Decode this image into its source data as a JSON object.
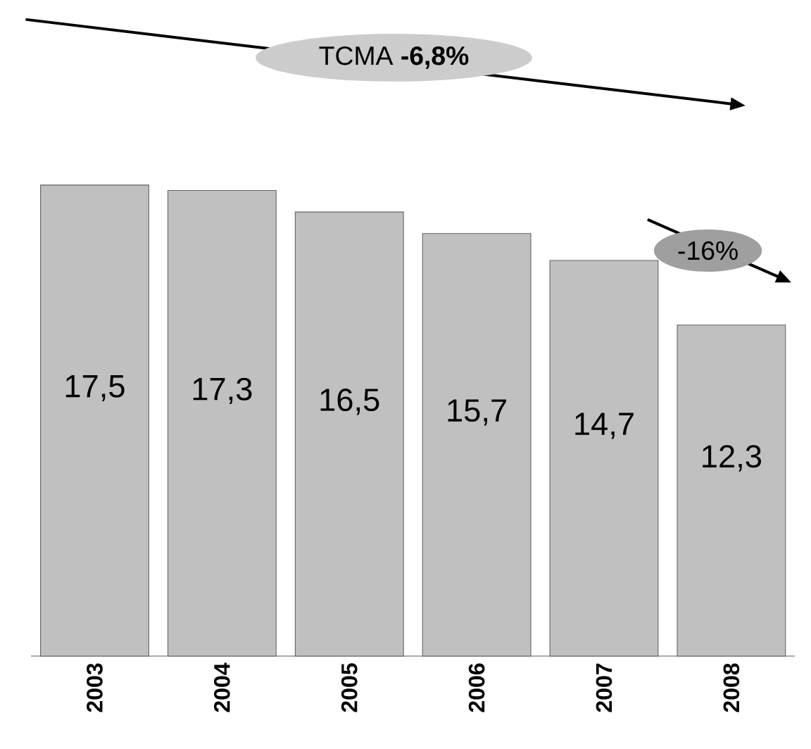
{
  "chart_data": {
    "type": "bar",
    "categories": [
      "2003",
      "2004",
      "2005",
      "2006",
      "2007",
      "2008"
    ],
    "values": [
      17.5,
      17.3,
      16.5,
      15.7,
      14.7,
      12.3
    ],
    "value_labels": [
      "17,5",
      "17,3",
      "16,5",
      "15,7",
      "14,7",
      "12,3"
    ],
    "color": "#c0c0c0",
    "annotations": [
      "TCMA **-6,8%**",
      "-16%"
    ]
  }
}
